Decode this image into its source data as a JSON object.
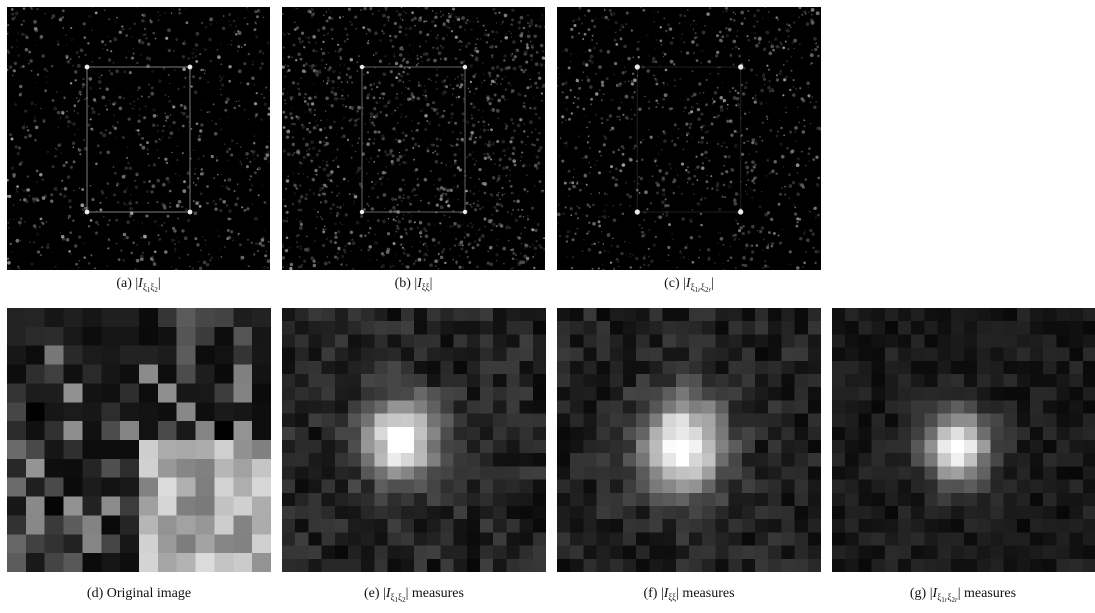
{
  "figure": {
    "panels_top": [
      {
        "id": "a",
        "caption_prefix": "(a) |",
        "symbol": "I",
        "subscript": "ξ1ξ2",
        "caption_suffix": "|"
      },
      {
        "id": "b",
        "caption_prefix": "(b) |",
        "symbol": "I",
        "subscript": "ξξ",
        "caption_suffix": "|"
      },
      {
        "id": "c",
        "caption_prefix": "(c) |",
        "symbol": "I",
        "subscript": "ξ1rξ2r",
        "caption_suffix": "|"
      }
    ],
    "panels_bottom": [
      {
        "id": "d",
        "caption": "(d) Original image"
      },
      {
        "id": "e",
        "caption_prefix": "(e) |",
        "symbol": "I",
        "subscript": "ξ1ξ2",
        "caption_suffix": "| measures"
      },
      {
        "id": "f",
        "caption_prefix": "(f) |",
        "symbol": "I",
        "subscript": "ξξ",
        "caption_suffix": "| measures"
      },
      {
        "id": "g",
        "caption_prefix": "(g) |",
        "symbol": "I",
        "subscript": "ξ1rξ2r",
        "caption_suffix": "| measures"
      }
    ]
  },
  "colors": {
    "panel_background": "#000000",
    "caption_text": "#111111"
  }
}
